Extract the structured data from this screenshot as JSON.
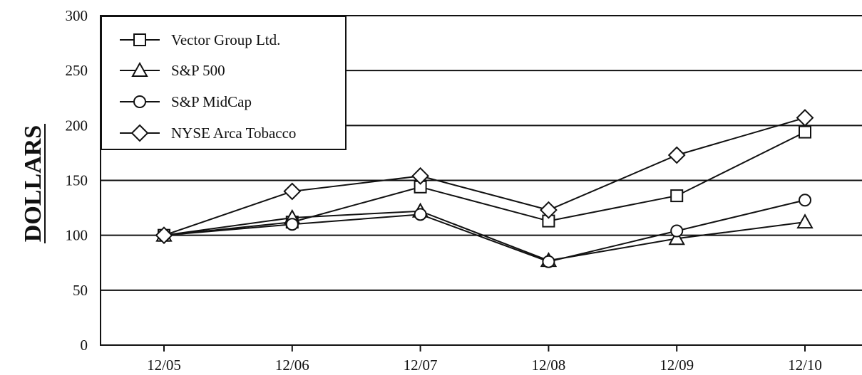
{
  "chart_data": {
    "type": "line",
    "title": "",
    "xlabel": "",
    "ylabel": "DOLLARS",
    "categories": [
      "12/05",
      "12/06",
      "12/07",
      "12/08",
      "12/09",
      "12/10"
    ],
    "ylim": [
      0,
      300
    ],
    "yticks": [
      0,
      50,
      100,
      150,
      200,
      250,
      300
    ],
    "grid": "horizontal",
    "legend_position": "top-left",
    "series": [
      {
        "name": "Vector Group Ltd.",
        "marker": "square",
        "values": [
          100,
          112,
          144,
          113,
          136,
          194
        ]
      },
      {
        "name": "S&P 500",
        "marker": "triangle",
        "values": [
          100,
          116,
          122,
          77,
          97,
          112
        ]
      },
      {
        "name": "S&P MidCap",
        "marker": "circle",
        "values": [
          100,
          110,
          119,
          76,
          104,
          132
        ]
      },
      {
        "name": "NYSE Arca Tobacco",
        "marker": "diamond",
        "values": [
          100,
          140,
          154,
          123,
          173,
          207
        ]
      }
    ],
    "colors": {
      "line": "#111111",
      "background": "#ffffff"
    }
  }
}
